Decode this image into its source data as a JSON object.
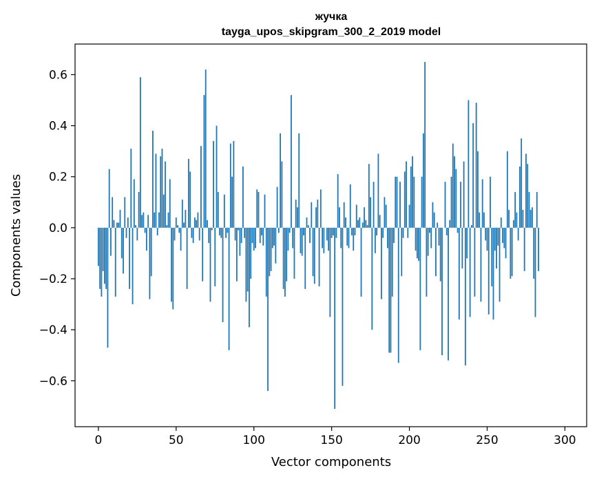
{
  "chart_data": {
    "type": "bar",
    "title_line1": "жучка",
    "title_line2": "tayga_upos_skipgram_300_2_2019 model",
    "xlabel": "Vector components",
    "ylabel": "Components values",
    "xlim": [
      -15,
      314
    ],
    "ylim": [
      -0.78,
      0.72
    ],
    "xticks": [
      0,
      50,
      100,
      150,
      200,
      250,
      300
    ],
    "xtick_labels": [
      "0",
      "50",
      "100",
      "150",
      "200",
      "250",
      "300"
    ],
    "yticks": [
      -0.6,
      -0.4,
      -0.2,
      0.0,
      0.2,
      0.4,
      0.6
    ],
    "ytick_labels": [
      "−0.6",
      "−0.4",
      "−0.2",
      "0.0",
      "0.2",
      "0.4",
      "0.6"
    ],
    "color": "#1f77b4",
    "grid": false,
    "values": [
      -0.15,
      -0.24,
      -0.27,
      -0.17,
      -0.22,
      -0.24,
      -0.47,
      0.23,
      -0.11,
      0.12,
      0.03,
      -0.27,
      0.02,
      0.02,
      0.07,
      -0.12,
      -0.18,
      0.12,
      -0.04,
      0.04,
      -0.24,
      0.31,
      -0.3,
      0.19,
      0.01,
      -0.05,
      0.14,
      0.59,
      0.05,
      0.06,
      -0.02,
      -0.09,
      0.05,
      -0.28,
      -0.19,
      0.38,
      0.06,
      0.29,
      -0.03,
      0.06,
      0.28,
      0.31,
      0.13,
      0.26,
      0.01,
      0.06,
      0.19,
      -0.29,
      -0.32,
      -0.05,
      0.04,
      0.01,
      -0.02,
      -0.09,
      0.11,
      0.02,
      0.07,
      -0.24,
      0.27,
      0.22,
      -0.04,
      -0.06,
      0.04,
      0.03,
      0.06,
      -0.05,
      0.32,
      -0.21,
      0.52,
      0.62,
      0.03,
      -0.06,
      -0.29,
      -0.01,
      0.34,
      -0.23,
      0.4,
      0.14,
      -0.03,
      -0.04,
      -0.37,
      0.13,
      -0.04,
      -0.02,
      -0.48,
      0.33,
      0.2,
      0.34,
      -0.05,
      -0.21,
      -0.01,
      -0.11,
      -0.06,
      0.24,
      -0.04,
      -0.29,
      -0.25,
      -0.39,
      -0.2,
      -0.06,
      -0.09,
      -0.08,
      0.15,
      0.14,
      -0.06,
      -0.03,
      -0.07,
      0.13,
      -0.27,
      -0.64,
      -0.19,
      -0.17,
      -0.08,
      -0.07,
      -0.14,
      0.16,
      -0.02,
      0.37,
      0.26,
      -0.24,
      -0.27,
      -0.21,
      -0.09,
      -0.02,
      0.52,
      -0.08,
      -0.2,
      0.11,
      0.08,
      0.37,
      -0.1,
      -0.11,
      -0.03,
      -0.24,
      0.04,
      0.01,
      -0.06,
      0.1,
      -0.19,
      -0.22,
      0.08,
      0.11,
      -0.23,
      0.15,
      -0.08,
      -0.1,
      0.0,
      -0.05,
      -0.09,
      -0.35,
      -0.04,
      -0.03,
      -0.71,
      -0.04,
      0.21,
      0.08,
      -0.08,
      -0.62,
      0.1,
      0.04,
      -0.07,
      -0.08,
      0.17,
      -0.03,
      -0.09,
      -0.03,
      0.09,
      0.03,
      0.04,
      -0.27,
      0.02,
      0.08,
      0.03,
      0.01,
      0.25,
      0.12,
      -0.4,
      0.18,
      -0.1,
      -0.03,
      0.29,
      0.05,
      -0.28,
      -0.04,
      0.12,
      0.09,
      -0.08,
      -0.49,
      -0.49,
      -0.27,
      -0.06,
      0.2,
      0.2,
      -0.53,
      0.18,
      -0.19,
      -0.04,
      0.22,
      0.26,
      -0.04,
      0.09,
      0.24,
      0.28,
      0.2,
      -0.09,
      -0.12,
      -0.13,
      -0.48,
      0.2,
      0.37,
      0.65,
      -0.27,
      -0.11,
      -0.02,
      -0.08,
      0.1,
      0.06,
      -0.19,
      0.02,
      -0.07,
      -0.21,
      -0.5,
      0.0,
      0.18,
      -0.03,
      -0.52,
      0.03,
      0.2,
      0.33,
      0.28,
      0.23,
      -0.02,
      -0.36,
      0.18,
      -0.16,
      0.26,
      -0.54,
      -0.12,
      0.5,
      -0.35,
      0.01,
      0.41,
      -0.27,
      0.49,
      0.3,
      0.06,
      -0.29,
      0.19,
      0.06,
      -0.05,
      -0.09,
      -0.34,
      0.2,
      -0.23,
      -0.36,
      -0.09,
      -0.16,
      -0.07,
      -0.29,
      0.04,
      -0.06,
      -0.08,
      -0.12,
      0.3,
      0.07,
      -0.2,
      -0.19,
      0.03,
      0.14,
      0.06,
      -0.05,
      0.24,
      0.35,
      0.07,
      -0.17,
      0.29,
      0.25,
      0.14,
      0.07,
      0.08,
      -0.2,
      -0.35,
      0.14,
      -0.17
    ]
  }
}
